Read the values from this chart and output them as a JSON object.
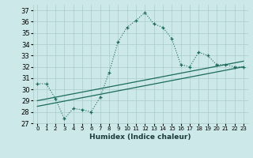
{
  "xlabel": "Humidex (Indice chaleur)",
  "xlim": [
    -0.5,
    23.5
  ],
  "ylim": [
    27,
    37.5
  ],
  "yticks": [
    27,
    28,
    29,
    30,
    31,
    32,
    33,
    34,
    35,
    36,
    37
  ],
  "xtick_labels": [
    "0",
    "1",
    "2",
    "3",
    "4",
    "5",
    "6",
    "7",
    "8",
    "9",
    "10",
    "11",
    "12",
    "13",
    "14",
    "15",
    "16",
    "17",
    "18",
    "19",
    "20",
    "21",
    "22",
    "23"
  ],
  "bg_color": "#cde8e8",
  "grid_color": "#aacccc",
  "line_color": "#1a6b5a",
  "main_series_x": [
    0,
    1,
    2,
    3,
    4,
    5,
    6,
    7,
    8,
    9,
    10,
    11,
    12,
    13,
    14,
    15,
    16,
    17,
    18,
    19,
    20,
    21,
    22,
    23
  ],
  "main_series_y": [
    30.5,
    30.5,
    29.2,
    27.4,
    28.3,
    28.2,
    28.0,
    29.3,
    31.5,
    34.2,
    35.5,
    36.1,
    36.8,
    35.8,
    35.5,
    34.5,
    32.2,
    32.0,
    33.3,
    33.0,
    32.2,
    32.2,
    32.0,
    32.0
  ],
  "trend1_x": [
    0,
    23
  ],
  "trend1_y": [
    28.5,
    32.0
  ],
  "trend2_x": [
    0,
    23
  ],
  "trend2_y": [
    29.0,
    32.5
  ]
}
